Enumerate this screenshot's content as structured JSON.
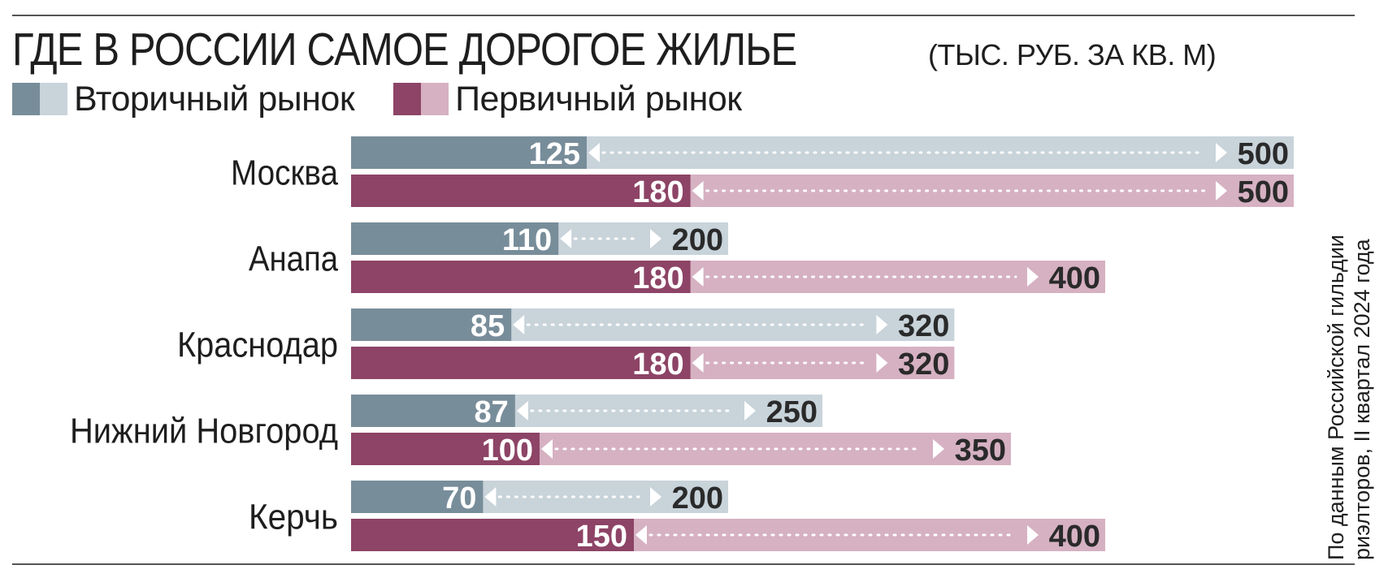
{
  "title": {
    "main": "ГДЕ В РОССИИ САМОЕ ДОРОГОЕ ЖИЛЬЕ",
    "unit": "(ТЫС. РУБ. ЗА КВ. М)"
  },
  "legend": [
    {
      "label": "Вторичный рынок",
      "dark": "#788d9a",
      "light": "#c8d3da"
    },
    {
      "label": "Первичный рынок",
      "dark": "#8d4466",
      "light": "#d6b1c2"
    }
  ],
  "source": {
    "line1": "По данным Российской гильдии",
    "line2": "риэлторов, II квартал 2024 года"
  },
  "chart_data": {
    "type": "bar",
    "categories": [
      "Москва",
      "Анапа",
      "Краснодар",
      "Нижний Новгород",
      "Керчь"
    ],
    "series": [
      {
        "name": "Вторичный рынок",
        "min": [
          125,
          110,
          85,
          87,
          70
        ],
        "max": [
          500,
          200,
          320,
          250,
          200
        ],
        "color_dark": "#788d9a",
        "color_light": "#c8d3da"
      },
      {
        "name": "Первичный рынок",
        "min": [
          180,
          180,
          180,
          100,
          150
        ],
        "max": [
          500,
          400,
          320,
          350,
          400
        ],
        "color_dark": "#8d4466",
        "color_light": "#d6b1c2"
      }
    ],
    "title": "ГДЕ В РОССИИ САМОЕ ДОРОГОЕ ЖИЛЬЕ",
    "unit": "тыс. руб. за кв. м",
    "xlim": [
      0,
      500
    ]
  }
}
